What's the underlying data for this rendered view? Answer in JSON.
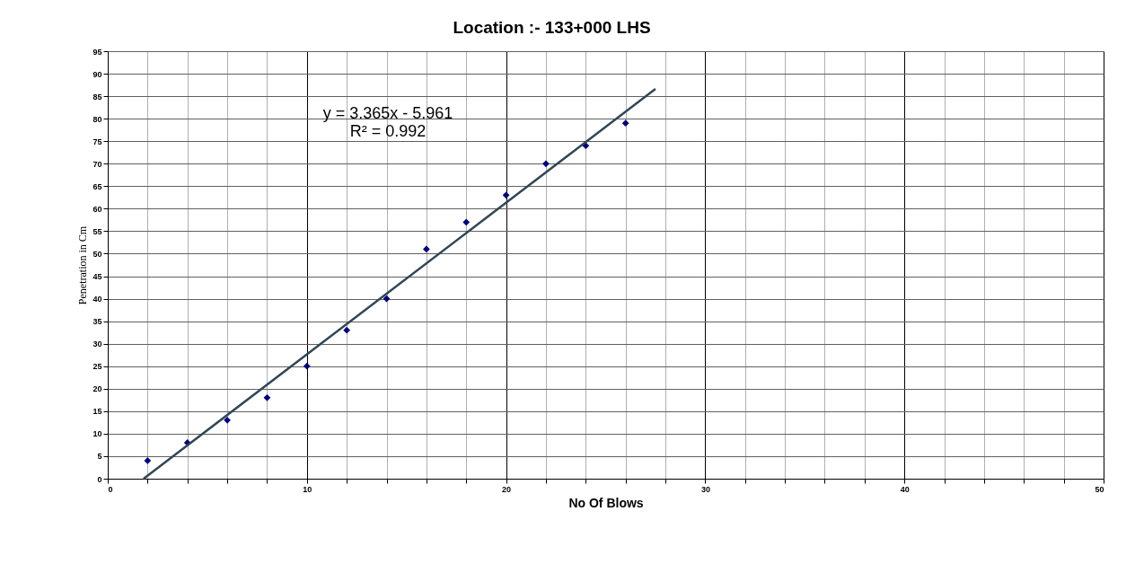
{
  "chart_data": {
    "type": "scatter",
    "title": "Location :-  133+000 LHS",
    "xlabel": "No Of Blows",
    "ylabel": "Penetration in Cm",
    "x": [
      2,
      4,
      6,
      8,
      10,
      12,
      14,
      16,
      18,
      20,
      22,
      24,
      26
    ],
    "series": [
      {
        "color": "#000080",
        "marker": "diamond",
        "values": [
          4,
          8,
          13,
          18,
          25,
          33,
          40,
          51,
          57,
          63,
          70,
          74,
          79
        ]
      },
      {
        "type": "line",
        "color": "#2f4656",
        "line_style": "solid",
        "x": [
          1.8,
          27.5
        ],
        "values": [
          0,
          86.6
        ]
      }
    ],
    "annotations": [
      "y = 3.365x - 5.961",
      "R² = 0.992"
    ],
    "xlim": [
      0,
      50
    ],
    "ylim": [
      0,
      95
    ],
    "xticks": [
      0,
      {
        "value": 2,
        "label": null
      },
      {
        "value": 4,
        "label": null
      },
      {
        "value": 6,
        "label": null
      },
      {
        "value": 8,
        "label": null
      },
      10,
      {
        "value": 12,
        "label": null
      },
      {
        "value": 14,
        "label": null
      },
      {
        "value": 16,
        "label": null
      },
      {
        "value": 18,
        "label": null
      },
      20,
      {
        "value": 22,
        "label": null
      },
      {
        "value": 24,
        "label": null
      },
      {
        "value": 26,
        "label": null
      },
      {
        "value": 28,
        "label": null
      },
      30,
      {
        "value": 32,
        "label": null
      },
      {
        "value": 34,
        "label": null
      },
      {
        "value": 36,
        "label": null
      },
      {
        "value": 38,
        "label": null
      },
      40,
      {
        "value": 42,
        "label": null
      },
      {
        "value": 44,
        "label": null
      },
      {
        "value": 46,
        "label": null
      },
      {
        "value": 48,
        "label": null
      },
      50
    ],
    "yticks": [
      0,
      5,
      10,
      15,
      20,
      25,
      30,
      35,
      40,
      45,
      50,
      55,
      60,
      65,
      70,
      75,
      80,
      85,
      90,
      95
    ],
    "grid": true
  }
}
